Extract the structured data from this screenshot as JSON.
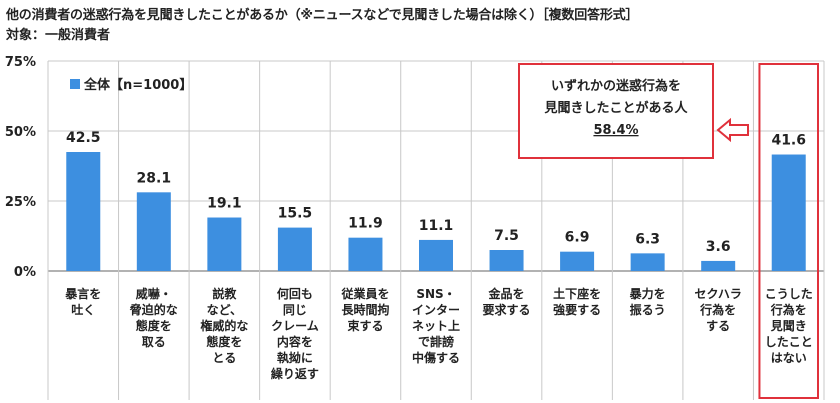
{
  "title": "他の消費者の迷惑行為を見聞きしたことがあるか（※ニュースなどで見聞きした場合は除く）［複数回答形式］",
  "subtitle": "対象：一般消費者",
  "colors": {
    "bar": "#3d8fe0",
    "highlight": "#e0313b",
    "grid": "#c8c8c8",
    "axis": "#666666"
  },
  "chart_data": {
    "type": "bar",
    "ylim": [
      0,
      75
    ],
    "yticks": [
      0,
      25,
      50,
      75
    ],
    "ytick_labels": [
      "0%",
      "25%",
      "50%",
      "75%"
    ],
    "legend": "全体【n=1000】",
    "categories": [
      [
        "暴言を",
        "吐く"
      ],
      [
        "威嚇・",
        "脅迫的な",
        "態度を",
        "取る"
      ],
      [
        "説教",
        "など、",
        "権威的な",
        "態度を",
        "とる"
      ],
      [
        "何回も",
        "同じ",
        "クレーム",
        "内容を",
        "執拗に",
        "繰り返す"
      ],
      [
        "従業員を",
        "長時間拘",
        "束する"
      ],
      [
        "SNS・",
        "インター",
        "ネット上",
        "で誹謗",
        "中傷する"
      ],
      [
        "金品を",
        "要求する"
      ],
      [
        "土下座を",
        "強要する"
      ],
      [
        "暴力を",
        "振るう"
      ],
      [
        "セクハラ",
        "行為を",
        "する"
      ],
      [
        "こうした",
        "行為を",
        "見聞き",
        "したこと",
        "はない"
      ]
    ],
    "values": [
      42.5,
      28.1,
      19.1,
      15.5,
      11.9,
      11.1,
      7.5,
      6.9,
      6.3,
      3.6,
      41.6
    ],
    "value_labels": [
      "42.5",
      "28.1",
      "19.1",
      "15.5",
      "11.9",
      "11.1",
      "7.5",
      "6.9",
      "6.3",
      "3.6",
      "41.6"
    ],
    "highlighted_index": 10,
    "callout": {
      "lines": [
        "いずれかの迷惑行為を",
        "見聞きしたことがある人"
      ],
      "value": "58.4%"
    }
  }
}
